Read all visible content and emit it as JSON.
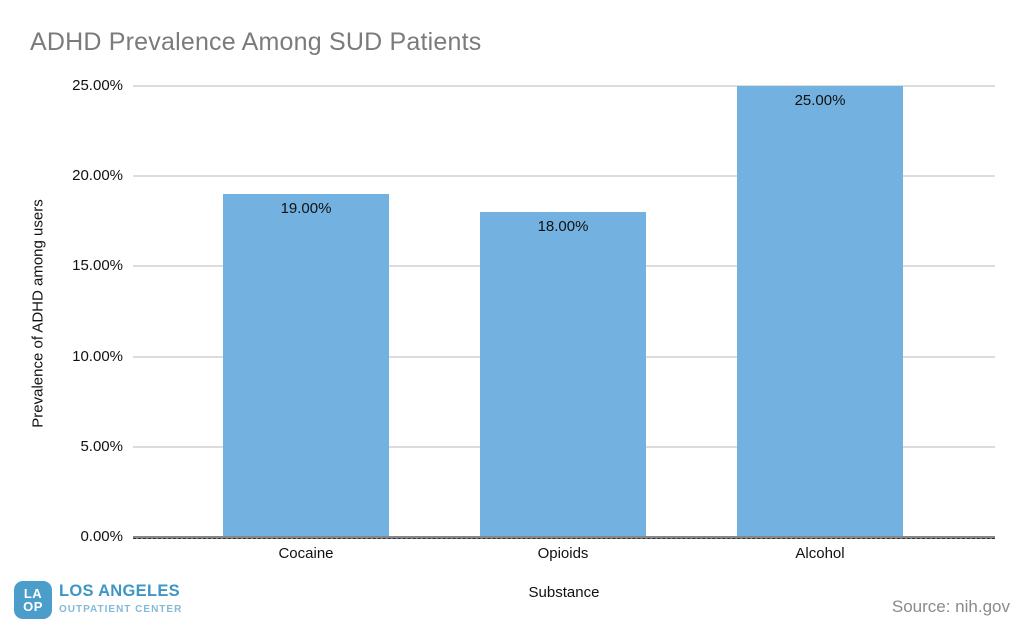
{
  "chart_data": {
    "type": "bar",
    "title": "ADHD Prevalence Among SUD Patients",
    "categories": [
      "Cocaine",
      "Opioids",
      "Alcohol"
    ],
    "values": [
      19,
      18,
      25
    ],
    "value_labels": [
      "19.00%",
      "18.00%",
      "25.00%"
    ],
    "xlabel": "Substance",
    "ylabel": "Prevalence of ADHD among users",
    "ylim": [
      0,
      25
    ],
    "ytick_values": [
      0,
      5,
      10,
      15,
      20,
      25
    ],
    "yticks": [
      "0.00%",
      "5.00%",
      "10.00%",
      "15.00%",
      "20.00%",
      "25.00%"
    ],
    "grid": "horizontal",
    "legend": "none",
    "bar_color": "#73B2E0"
  },
  "footer": {
    "logo": {
      "badge_line1": "LA",
      "badge_line2": "OP",
      "badge_color": "#4A9EC9",
      "name": "LOS ANGELES",
      "name_color": "#3D96C4",
      "subtitle": "OUTPATIENT CENTER",
      "subtitle_color": "#82BAD7"
    },
    "source": "Source: nih.gov"
  }
}
